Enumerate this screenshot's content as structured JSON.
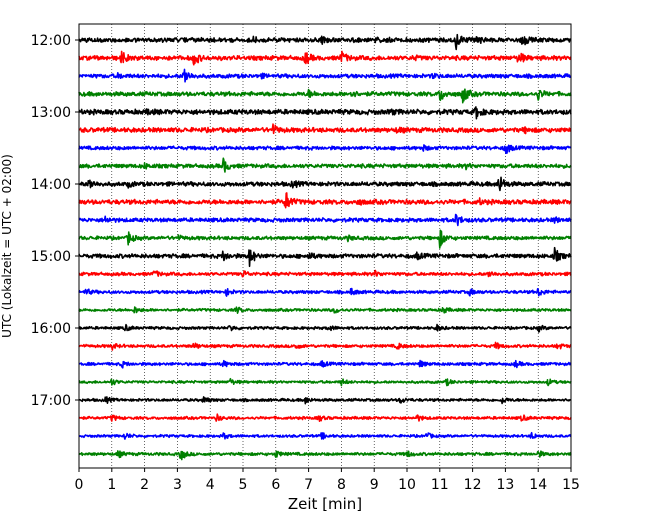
{
  "chart_data": {
    "type": "line",
    "subtype": "helicorder",
    "xlabel": "Zeit  [min]",
    "ylabel": "UTC (Lokalzeit = UTC + 02:00)",
    "xlim": [
      0,
      15
    ],
    "x_ticks": [
      0,
      1,
      2,
      3,
      4,
      5,
      6,
      7,
      8,
      9,
      10,
      11,
      12,
      13,
      14,
      15
    ],
    "x_tick_labels": [
      "0",
      "1",
      "2",
      "3",
      "4",
      "5",
      "6",
      "7",
      "8",
      "9",
      "10",
      "11",
      "12",
      "13",
      "14",
      "15"
    ],
    "grid": "vertical-dotted",
    "trace_interval_min": 15,
    "trace_colors": [
      "#000000",
      "#ff0000",
      "#0000ff",
      "#008000"
    ],
    "y_tick_labels": [
      "12:00",
      "13:00",
      "14:00",
      "15:00",
      "16:00",
      "17:00"
    ],
    "trace_rows": [
      {
        "time": "12:00",
        "color": "#000000",
        "label": "12:00",
        "amp": 2.5,
        "events": [
          [
            11.5,
            8
          ],
          [
            12.1,
            5
          ],
          [
            13.5,
            6
          ],
          [
            5.3,
            2
          ],
          [
            7.4,
            2
          ],
          [
            9.0,
            2
          ]
        ]
      },
      {
        "time": "12:15",
        "color": "#ff0000",
        "label": "",
        "amp": 2.5,
        "events": [
          [
            1.3,
            6
          ],
          [
            3.5,
            7
          ],
          [
            6.9,
            6
          ],
          [
            8.0,
            6
          ],
          [
            13.4,
            6
          ],
          [
            10.2,
            2
          ]
        ]
      },
      {
        "time": "12:30",
        "color": "#0000ff",
        "label": "",
        "amp": 2.2,
        "events": [
          [
            3.2,
            9
          ],
          [
            1.2,
            2
          ],
          [
            5.5,
            2
          ],
          [
            10.8,
            2
          ]
        ]
      },
      {
        "time": "12:45",
        "color": "#008000",
        "label": "",
        "amp": 2.4,
        "events": [
          [
            11.0,
            7
          ],
          [
            11.7,
            9
          ],
          [
            14.0,
            5
          ],
          [
            8.3,
            3
          ],
          [
            7.0,
            3
          ]
        ]
      },
      {
        "time": "13:00",
        "color": "#000000",
        "label": "13:00",
        "amp": 2.8,
        "events": [
          [
            12.1,
            6
          ],
          [
            2.1,
            2
          ],
          [
            9.5,
            2
          ]
        ]
      },
      {
        "time": "13:15",
        "color": "#ff0000",
        "label": "",
        "amp": 2.6,
        "events": [
          [
            5.9,
            5
          ],
          [
            9.7,
            2
          ],
          [
            13.6,
            2
          ]
        ]
      },
      {
        "time": "13:30",
        "color": "#0000ff",
        "label": "",
        "amp": 2.0,
        "events": [
          [
            13.0,
            6
          ],
          [
            10.5,
            2
          ]
        ]
      },
      {
        "time": "13:45",
        "color": "#008000",
        "label": "",
        "amp": 2.2,
        "events": [
          [
            4.4,
            7
          ],
          [
            2.0,
            2
          ],
          [
            11.8,
            2
          ]
        ]
      },
      {
        "time": "14:00",
        "color": "#000000",
        "label": "14:00",
        "amp": 2.4,
        "events": [
          [
            0.3,
            5
          ],
          [
            12.8,
            10
          ],
          [
            6.5,
            3
          ],
          [
            1.5,
            2
          ]
        ]
      },
      {
        "time": "14:15",
        "color": "#ff0000",
        "label": "",
        "amp": 2.6,
        "events": [
          [
            6.3,
            10
          ],
          [
            8.5,
            2
          ],
          [
            12.2,
            2
          ]
        ]
      },
      {
        "time": "14:30",
        "color": "#0000ff",
        "label": "",
        "amp": 2.2,
        "events": [
          [
            11.5,
            6
          ],
          [
            0.8,
            3
          ],
          [
            14.5,
            2
          ]
        ]
      },
      {
        "time": "14:45",
        "color": "#008000",
        "label": "",
        "amp": 2.0,
        "events": [
          [
            1.5,
            6
          ],
          [
            11.0,
            9
          ],
          [
            3.0,
            2
          ],
          [
            8.2,
            2
          ]
        ]
      },
      {
        "time": "15:00",
        "color": "#000000",
        "label": "15:00",
        "amp": 2.3,
        "events": [
          [
            4.4,
            5
          ],
          [
            5.2,
            9
          ],
          [
            14.5,
            7
          ],
          [
            7.0,
            3
          ],
          [
            10.3,
            3
          ]
        ]
      },
      {
        "time": "15:15",
        "color": "#ff0000",
        "label": "",
        "amp": 1.8,
        "events": [
          [
            2.3,
            3
          ],
          [
            5.0,
            3
          ],
          [
            9.0,
            3
          ],
          [
            12.5,
            3
          ]
        ]
      },
      {
        "time": "15:30",
        "color": "#0000ff",
        "label": "",
        "amp": 1.7,
        "events": [
          [
            0.2,
            3
          ],
          [
            4.5,
            3
          ],
          [
            8.3,
            3
          ],
          [
            11.9,
            3
          ],
          [
            14.0,
            4
          ]
        ]
      },
      {
        "time": "15:45",
        "color": "#008000",
        "label": "",
        "amp": 1.5,
        "events": [
          [
            1.7,
            3
          ],
          [
            4.8,
            3
          ],
          [
            7.8,
            3
          ],
          [
            11.1,
            3
          ]
        ]
      },
      {
        "time": "16:00",
        "color": "#000000",
        "label": "16:00",
        "amp": 1.5,
        "events": [
          [
            1.4,
            3
          ],
          [
            4.6,
            3
          ],
          [
            7.6,
            3
          ],
          [
            10.9,
            3
          ],
          [
            14.0,
            3
          ]
        ]
      },
      {
        "time": "16:15",
        "color": "#ff0000",
        "label": "",
        "amp": 1.6,
        "events": [
          [
            1.0,
            3
          ],
          [
            3.5,
            3
          ],
          [
            6.6,
            3
          ],
          [
            9.7,
            3
          ],
          [
            12.7,
            3
          ],
          [
            14.6,
            3
          ]
        ]
      },
      {
        "time": "16:30",
        "color": "#0000ff",
        "label": "",
        "amp": 1.6,
        "events": [
          [
            1.3,
            3
          ],
          [
            4.4,
            3
          ],
          [
            7.4,
            3
          ],
          [
            10.4,
            3
          ],
          [
            13.3,
            3
          ]
        ]
      },
      {
        "time": "16:45",
        "color": "#008000",
        "label": "",
        "amp": 1.4,
        "events": [
          [
            1.0,
            3
          ],
          [
            4.6,
            3
          ],
          [
            8.0,
            3
          ],
          [
            11.2,
            3
          ],
          [
            14.3,
            3
          ]
        ]
      },
      {
        "time": "17:00",
        "color": "#000000",
        "label": "17:00",
        "amp": 1.5,
        "events": [
          [
            0.8,
            3
          ],
          [
            3.8,
            3
          ],
          [
            6.9,
            3
          ],
          [
            9.8,
            3
          ],
          [
            12.9,
            3
          ]
        ]
      },
      {
        "time": "17:15",
        "color": "#ff0000",
        "label": "",
        "amp": 1.5,
        "events": [
          [
            1.0,
            3
          ],
          [
            4.2,
            3
          ],
          [
            7.3,
            3
          ],
          [
            10.3,
            3
          ],
          [
            13.5,
            3
          ]
        ]
      },
      {
        "time": "17:30",
        "color": "#0000ff",
        "label": "",
        "amp": 1.4,
        "events": [
          [
            1.4,
            3
          ],
          [
            4.4,
            3
          ],
          [
            7.4,
            3
          ],
          [
            10.6,
            3
          ],
          [
            13.8,
            3
          ]
        ]
      },
      {
        "time": "17:45",
        "color": "#008000",
        "label": "",
        "amp": 1.6,
        "events": [
          [
            1.2,
            3
          ],
          [
            3.1,
            6
          ],
          [
            6.0,
            3
          ],
          [
            10.0,
            3
          ],
          [
            14.0,
            3
          ]
        ]
      }
    ]
  }
}
